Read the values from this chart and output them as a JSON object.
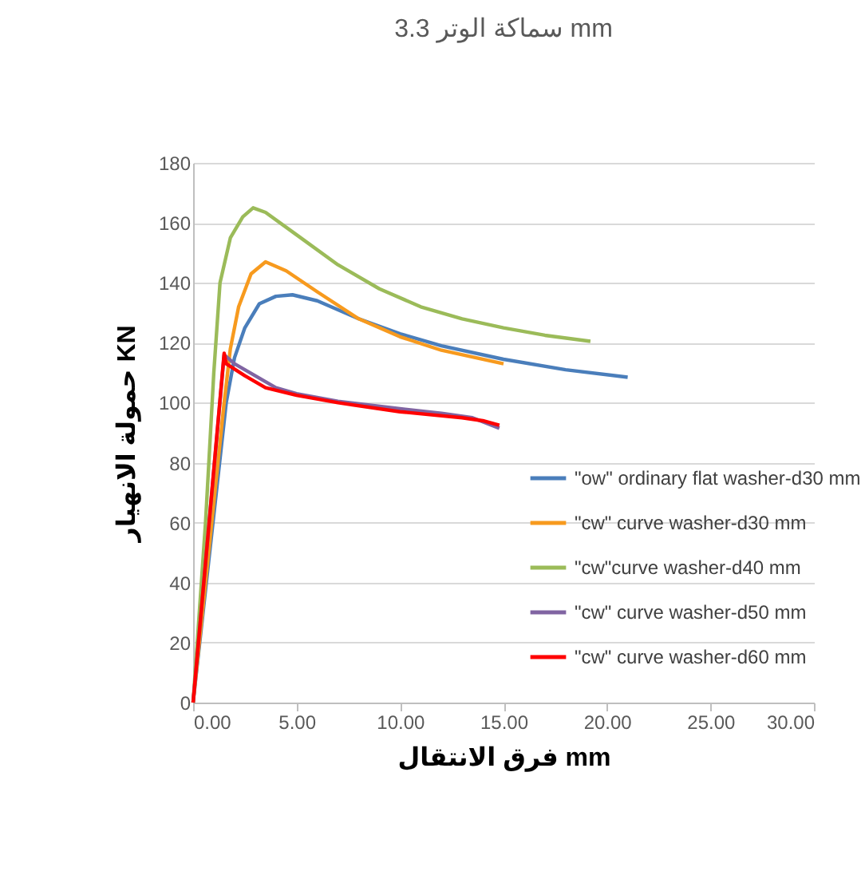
{
  "chart_data": {
    "type": "line",
    "title": "سماكة الوتر 3.3 mm",
    "xlabel": "فرق الانتقال mm",
    "ylabel": "حمولة الانهيار KN",
    "xlim": [
      0,
      30
    ],
    "xticks": [
      {
        "value": 0,
        "label": "0.00"
      },
      {
        "value": 5,
        "label": "5.00"
      },
      {
        "value": 10,
        "label": "10.00"
      },
      {
        "value": 15,
        "label": "15.00"
      },
      {
        "value": 20,
        "label": "20.00"
      },
      {
        "value": 25,
        "label": "25.00"
      },
      {
        "value": 30,
        "label": "30.00"
      }
    ],
    "ylim": [
      0,
      180
    ],
    "yticks": [
      0,
      20,
      40,
      60,
      80,
      100,
      120,
      140,
      160,
      180
    ],
    "grid": "y",
    "legend": "bottom right",
    "marker": "none",
    "line_style": "solid",
    "series": [
      {
        "name": "\"ow\" ordinary flat washer-d30 mm",
        "color": "#4a7ebb",
        "x": [
          0,
          1.6,
          2.0,
          2.5,
          3.2,
          4.0,
          4.8,
          6,
          8,
          10,
          12,
          15,
          18,
          21
        ],
        "values": [
          0,
          100,
          115,
          125,
          133,
          135.5,
          136,
          134,
          128,
          123,
          119,
          114.5,
          111,
          108.5
        ]
      },
      {
        "name": "\"cw\" curve washer-d30 mm",
        "color": "#f79a1e",
        "x": [
          0,
          1.5,
          1.8,
          2.2,
          2.8,
          3.5,
          4.5,
          6,
          8,
          10,
          12,
          15
        ],
        "values": [
          0,
          100,
          118,
          132,
          143,
          147,
          144,
          137,
          128,
          122,
          117.5,
          113
        ]
      },
      {
        "name": "\"cw\"curve washer-d40 mm",
        "color": "#9bbb59",
        "x": [
          0,
          0.6,
          1.0,
          1.3,
          1.8,
          2.4,
          2.9,
          3.5,
          5,
          7,
          9,
          11,
          13,
          15,
          17,
          19.2
        ],
        "values": [
          0,
          60,
          110,
          140,
          155,
          162,
          165,
          163.5,
          156,
          146,
          138,
          132,
          128,
          125,
          122.5,
          120.5
        ]
      },
      {
        "name": "\"cw\" curve washer-d50 mm",
        "color": "#8064a2",
        "x": [
          0,
          1.5,
          2,
          3,
          4,
          5,
          7,
          10,
          12,
          13.5,
          14.8
        ],
        "values": [
          0,
          116,
          113,
          109,
          105,
          103,
          100.5,
          98,
          96.5,
          95,
          91.5
        ]
      },
      {
        "name": "\"cw\" curve washer-d60 mm",
        "color": "#ff0000",
        "x": [
          0,
          1.5,
          1.6,
          2.5,
          3.5,
          5,
          7,
          10,
          13,
          14,
          14.8
        ],
        "values": [
          0,
          116.5,
          113,
          109,
          105,
          102.5,
          100,
          97,
          95,
          94,
          92.5
        ]
      }
    ]
  }
}
